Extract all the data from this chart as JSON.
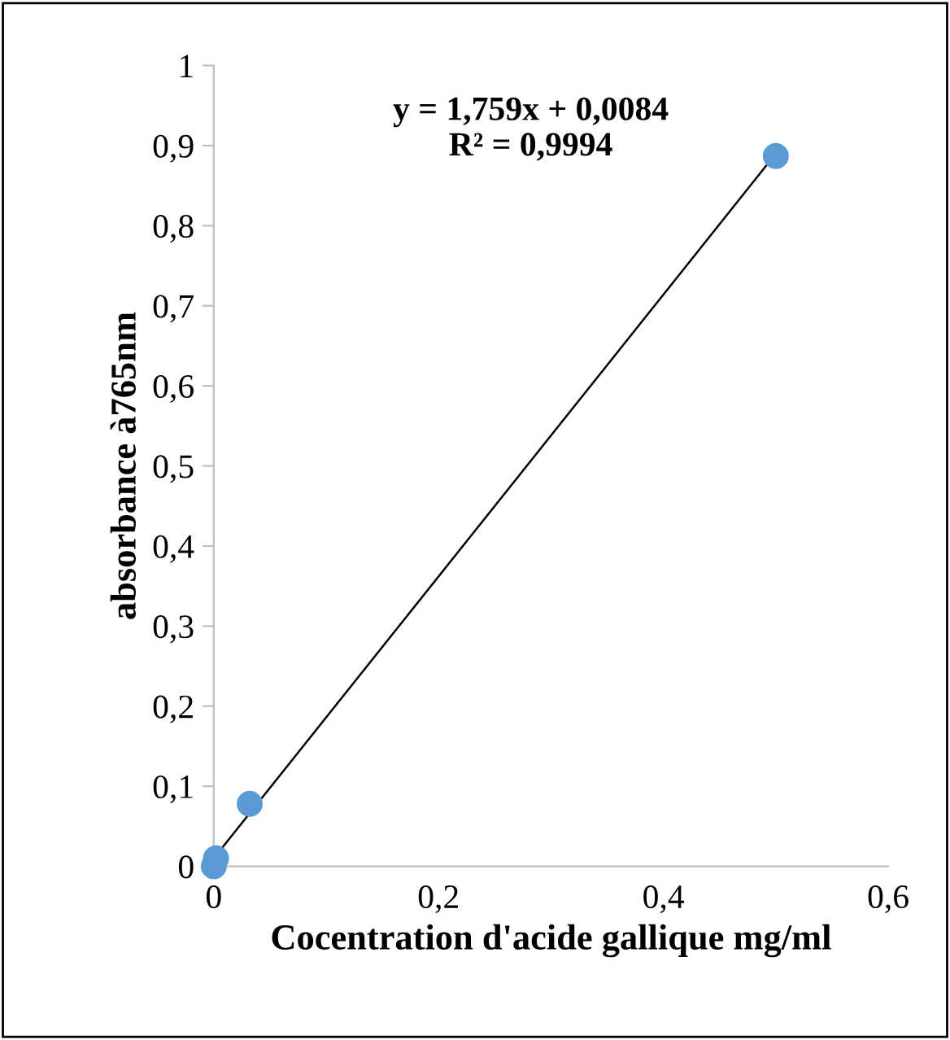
{
  "chart_data": {
    "type": "scatter",
    "xlabel": "Cocentration d'acide gallique mg/ml",
    "ylabel": "absorbance à765nm",
    "series": [
      {
        "color": "#5b9bd5",
        "marker": "circle",
        "x": [
          0,
          0.002,
          0.032,
          0.5
        ],
        "values": [
          0,
          0.01,
          0.078,
          0.887
        ]
      },
      {
        "type": "line",
        "color": "#000000",
        "x": [
          0,
          0.5
        ],
        "values": [
          0.01,
          0.89
        ]
      }
    ],
    "annotations": [
      "y = 1,759x + 0,0084\nR² = 0,9994"
    ],
    "xlim": [
      0,
      0.6
    ],
    "ylim": [
      0,
      1
    ],
    "xticks": [
      0,
      {
        "value": 0.2,
        "label": "0,2"
      },
      {
        "value": 0.4,
        "label": "0,4"
      },
      {
        "value": 0.6,
        "label": "0,6"
      }
    ],
    "yticks": [
      0,
      {
        "value": 0.1,
        "label": "0,1"
      },
      {
        "value": 0.2,
        "label": "0,2"
      },
      {
        "value": 0.3,
        "label": "0,3"
      },
      {
        "value": 0.4,
        "label": "0,4"
      },
      {
        "value": 0.5,
        "label": "0,5"
      },
      {
        "value": 0.6,
        "label": "0,6"
      },
      {
        "value": 0.7,
        "label": "0,7"
      },
      {
        "value": 0.8,
        "label": "0,8"
      },
      {
        "value": 0.9,
        "label": "0,9"
      },
      1
    ],
    "grid": false,
    "legend": false
  }
}
